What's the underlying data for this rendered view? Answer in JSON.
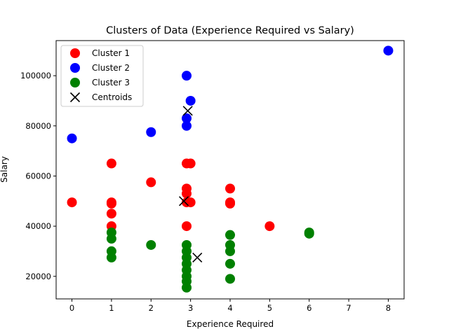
{
  "chart_data": {
    "type": "scatter",
    "title": "Clusters of Data (Experience Required vs Salary)",
    "xlabel": "Experience Required",
    "ylabel": "Salary",
    "xlim": [
      -0.4,
      8.4
    ],
    "ylim": [
      11000,
      114000
    ],
    "xticks": [
      0,
      1,
      2,
      3,
      4,
      5,
      6,
      7,
      8
    ],
    "yticks": [
      20000,
      40000,
      60000,
      80000,
      100000
    ],
    "ytick_labels": [
      "20000",
      "40000",
      "60000",
      "80000",
      "100000"
    ],
    "grid": false,
    "legend_position": "top-left",
    "series": [
      {
        "name": "Cluster 1",
        "color": "#ff0000",
        "marker": "circle",
        "points": [
          [
            0,
            49500
          ],
          [
            1,
            65000
          ],
          [
            1,
            49500
          ],
          [
            1,
            49000
          ],
          [
            1,
            45000
          ],
          [
            1,
            40000
          ],
          [
            2,
            57500
          ],
          [
            2.9,
            65000
          ],
          [
            3,
            65000
          ],
          [
            2.9,
            55000
          ],
          [
            2.9,
            53000
          ],
          [
            2.9,
            49500
          ],
          [
            3,
            49500
          ],
          [
            2.9,
            40000
          ],
          [
            4,
            55000
          ],
          [
            4,
            49500
          ],
          [
            4,
            49000
          ],
          [
            5,
            40000
          ]
        ]
      },
      {
        "name": "Cluster 2",
        "color": "#0000ff",
        "marker": "circle",
        "points": [
          [
            0,
            75000
          ],
          [
            2,
            77500
          ],
          [
            2.9,
            100000
          ],
          [
            3,
            90000
          ],
          [
            2.9,
            83000
          ],
          [
            2.9,
            80000
          ],
          [
            8,
            110000
          ]
        ]
      },
      {
        "name": "Cluster 3",
        "color": "#008000",
        "marker": "circle",
        "points": [
          [
            1,
            37500
          ],
          [
            1,
            35000
          ],
          [
            1,
            30000
          ],
          [
            1,
            27500
          ],
          [
            2,
            32500
          ],
          [
            2.9,
            32500
          ],
          [
            2.9,
            30000
          ],
          [
            2.9,
            27500
          ],
          [
            2.9,
            25000
          ],
          [
            2.9,
            22500
          ],
          [
            2.9,
            20000
          ],
          [
            2.9,
            18000
          ],
          [
            2.9,
            15500
          ],
          [
            4,
            36500
          ],
          [
            4,
            32500
          ],
          [
            4,
            30000
          ],
          [
            4,
            25000
          ],
          [
            4,
            19000
          ],
          [
            6,
            37500
          ],
          [
            6,
            37000
          ]
        ]
      },
      {
        "name": "Centroids",
        "color": "#000000",
        "marker": "x",
        "points": [
          [
            2.93,
            86000
          ],
          [
            2.83,
            50000
          ],
          [
            3.17,
            27500
          ]
        ]
      }
    ]
  }
}
